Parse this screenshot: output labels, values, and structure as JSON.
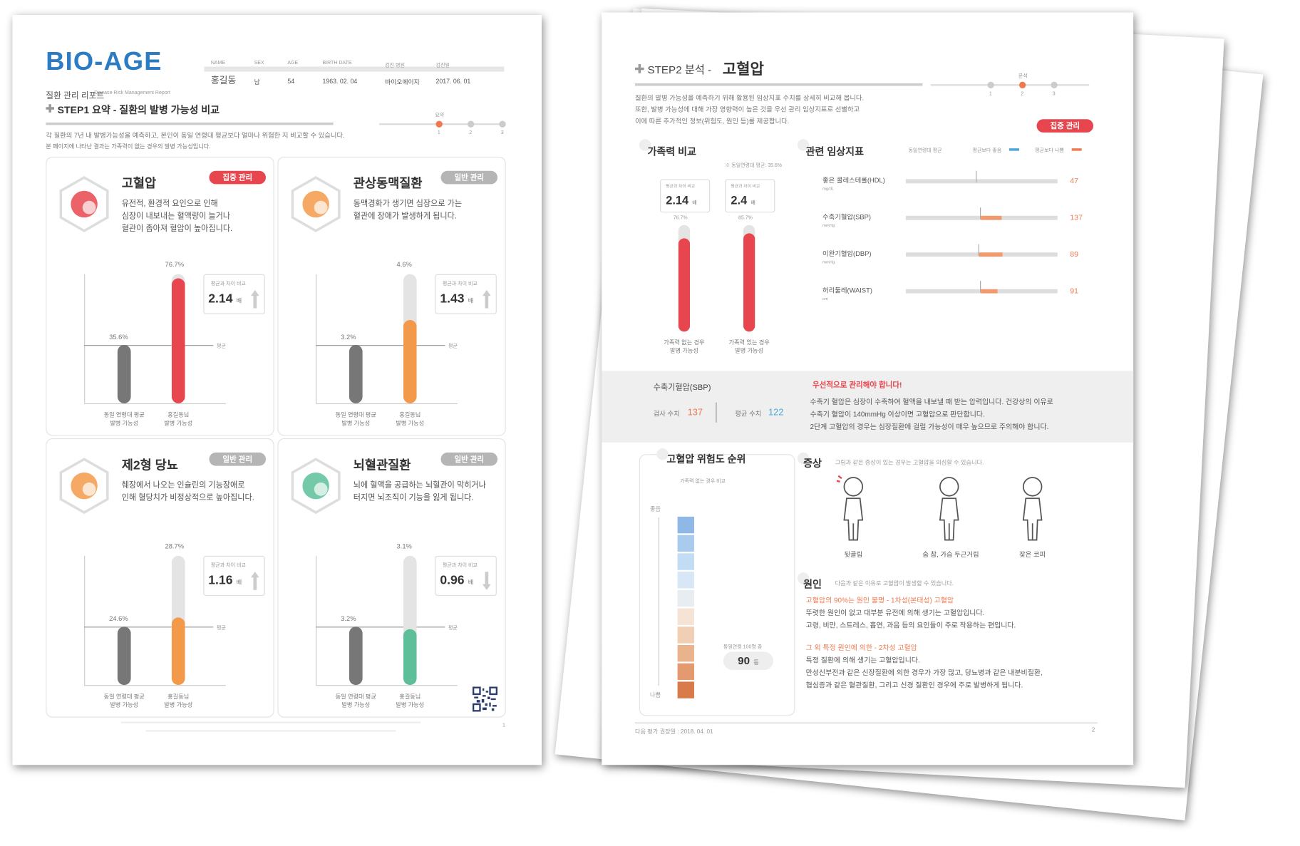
{
  "page1": {
    "logo": "BIO-AGE",
    "report_title": "질환 관리 리포트",
    "report_subtitle": "Disease Risk Management Report",
    "patient": {
      "labels": [
        "NAME",
        "SEX",
        "AGE",
        "BIRTH DATE",
        "검진 병원",
        "검진일"
      ],
      "values": [
        "홍길동",
        "남",
        "54",
        "1963. 02. 04",
        "바이오에이지",
        "2017. 06. 01"
      ]
    },
    "step_title": "STEP1 요약 - 질환의 발병 가능성 비교",
    "step_current": "요약",
    "steps": [
      "1",
      "2",
      "3"
    ],
    "intro": [
      "각 질환의 7년 내 발병가능성을 예측하고, 본인이 동일 연령대 평균보다 얼마나 위험한 지 비교할 수 있습니다.",
      "본 페이지에 나타난 결과는 가족력이 없는 경우의 발병 가능성입니다."
    ],
    "compare_label": "평균과 차이 비교",
    "ratio_unit": "배",
    "avg_line_label": "평균",
    "bar_labels": [
      [
        "동일 연령대 평균",
        "발병 가능성"
      ],
      [
        "홍길동님",
        "발병 가능성"
      ]
    ],
    "cards": [
      {
        "name": "고혈압",
        "badge": "집중 관리",
        "badge_color": "#e8464f",
        "color": "#e8464f",
        "description": [
          "유전적, 환경적 요인으로 인해",
          "심장이 내보내는 혈액량이 늘거나",
          "혈관이 좁아져 혈압이 높아집니다."
        ],
        "avg_value": "35.6%",
        "my_value": "76.7%",
        "ratio": 2.14
      },
      {
        "name": "관상동맥질환",
        "badge": "일반 관리",
        "badge_color": "#b5b5b5",
        "color": "#f39a4a",
        "description": [
          "동맥경화가 생기면 심장으로 가는",
          "혈관에 장애가 발생하게 됩니다."
        ],
        "avg_value": "3.2%",
        "my_value": "4.6%",
        "ratio": 1.43
      },
      {
        "name": "제2형 당뇨",
        "badge": "일반 관리",
        "badge_color": "#b5b5b5",
        "color": "#f39a4a",
        "description": [
          "췌장에서 나오는 인슐린의 기능장애로",
          "인해 혈당치가 비정상적으로 높아집니다."
        ],
        "avg_value": "24.6%",
        "my_value": "28.7%",
        "ratio": 1.16
      },
      {
        "name": "뇌혈관질환",
        "badge": "일반 관리",
        "badge_color": "#b5b5b5",
        "color": "#5cbf9a",
        "description": [
          "뇌에 혈액을 공급하는 뇌혈관이 막히거나",
          "터지면 뇌조직이 기능을 잃게 됩니다."
        ],
        "avg_value": "3.2%",
        "my_value": "3.1%",
        "ratio": 0.96
      }
    ],
    "page_number": "1"
  },
  "page2": {
    "step_title": "STEP2 분석 -",
    "disease": "고혈압",
    "step_current": "분석",
    "steps": [
      "1",
      "2",
      "3"
    ],
    "intro": [
      "질환의 발병 가능성을 예측하기 위해 활용된 임상지표 수치를 상세히 비교해 봅니다.",
      "또한, 발병 가능성에 대해 가장 영향력이 높은 것을 우선 관리 임상지표로 선별하고",
      "이에 따른 추가적인 정보(위험도, 원인 등)를 제공합니다."
    ],
    "badge": "집중 관리",
    "family": {
      "title": "가족력 비교",
      "note": "※ 동일연령대 평균: 35.6%",
      "compare_label": "평균과 차이 비교",
      "ratio_unit": "배",
      "ratios": [
        2.14,
        2.4
      ],
      "values": [
        "76.7%",
        "85.7%"
      ],
      "labels": [
        [
          "가족력 없는 경우",
          "발병 가능성"
        ],
        [
          "가족력 있는 경우",
          "발병 가능성"
        ]
      ]
    },
    "clinical": {
      "title": "관련 임상지표",
      "legend": [
        "동일연령대 평균",
        "평균보다 좋음",
        "평균보다 나쁨"
      ],
      "names": [
        "좋은 콜레스테롤(HDL)",
        "수축기혈압(SBP)",
        "이완기혈압(DBP)",
        "허리둘레(WAIST)"
      ],
      "units": [
        "mg/dL",
        "mmHg",
        "mmHg",
        "cm"
      ],
      "values": [
        47,
        137,
        89,
        91
      ]
    },
    "priority": {
      "name": "수축기혈압(SBP)",
      "measured_label": "검사 수치",
      "measured": 137,
      "average_label": "평균 수치",
      "average": 122,
      "alert": "우선적으로 관리해야 합니다!",
      "text": [
        "수축기 혈압은 심장이 수축하여 혈액을 내보낼 때 받는 압력입니다. 건강상의 이유로",
        "수축기 혈압이 140mmHg 이상이면 고혈압으로 판단합니다.",
        "2단계 고혈압의 경우는 심장질환에 걸릴 가능성이 매우 높으므로 주의해야 합니다."
      ]
    },
    "ranking": {
      "title": "고혈압 위험도 순위",
      "subtitle": "가족력 없는 경우 비교",
      "top": "좋음",
      "bottom": "나쁨",
      "callout": "동일연령 100명 중",
      "rank": 90,
      "rank_unit": "등"
    },
    "symptoms": {
      "title": "증상",
      "description": "그림과 같은 증상이 있는 경우는 고혈압을 의심할 수 있습니다.",
      "items": [
        "뒷골림",
        "숨 참, 가슴 두근거림",
        "잦은 코피"
      ]
    },
    "causes": {
      "title": "원인",
      "description": "다음과 같은 이유로 고혈압이 발생할 수 있습니다.",
      "primary_title": "고혈압의 90%는 원인 불명 - 1차성(본태성) 고혈압",
      "primary": [
        "뚜렷한 원인이 없고 대부분 유전에 의해 생기는 고혈압입니다.",
        "고령, 비만, 스트레스, 흡연, 과음 등의 요인들이 주로 작용하는 편입니다."
      ],
      "secondary_title": "그 외 특정 원인에 의한 - 2차성 고혈압",
      "secondary": [
        "특정 질환에 의해 생기는 고혈압입니다.",
        "만성신부전과 같은 신장질환에 의한 경우가 가장 많고, 당뇨병과 같은 내분비질환,",
        "협심증과 같은 혈관질환, 그리고 신경 질환인 경우에 주로 발병하게 됩니다."
      ]
    },
    "footer": "다음 평가 권장일 : 2018. 04. 01",
    "page_number": "2"
  }
}
